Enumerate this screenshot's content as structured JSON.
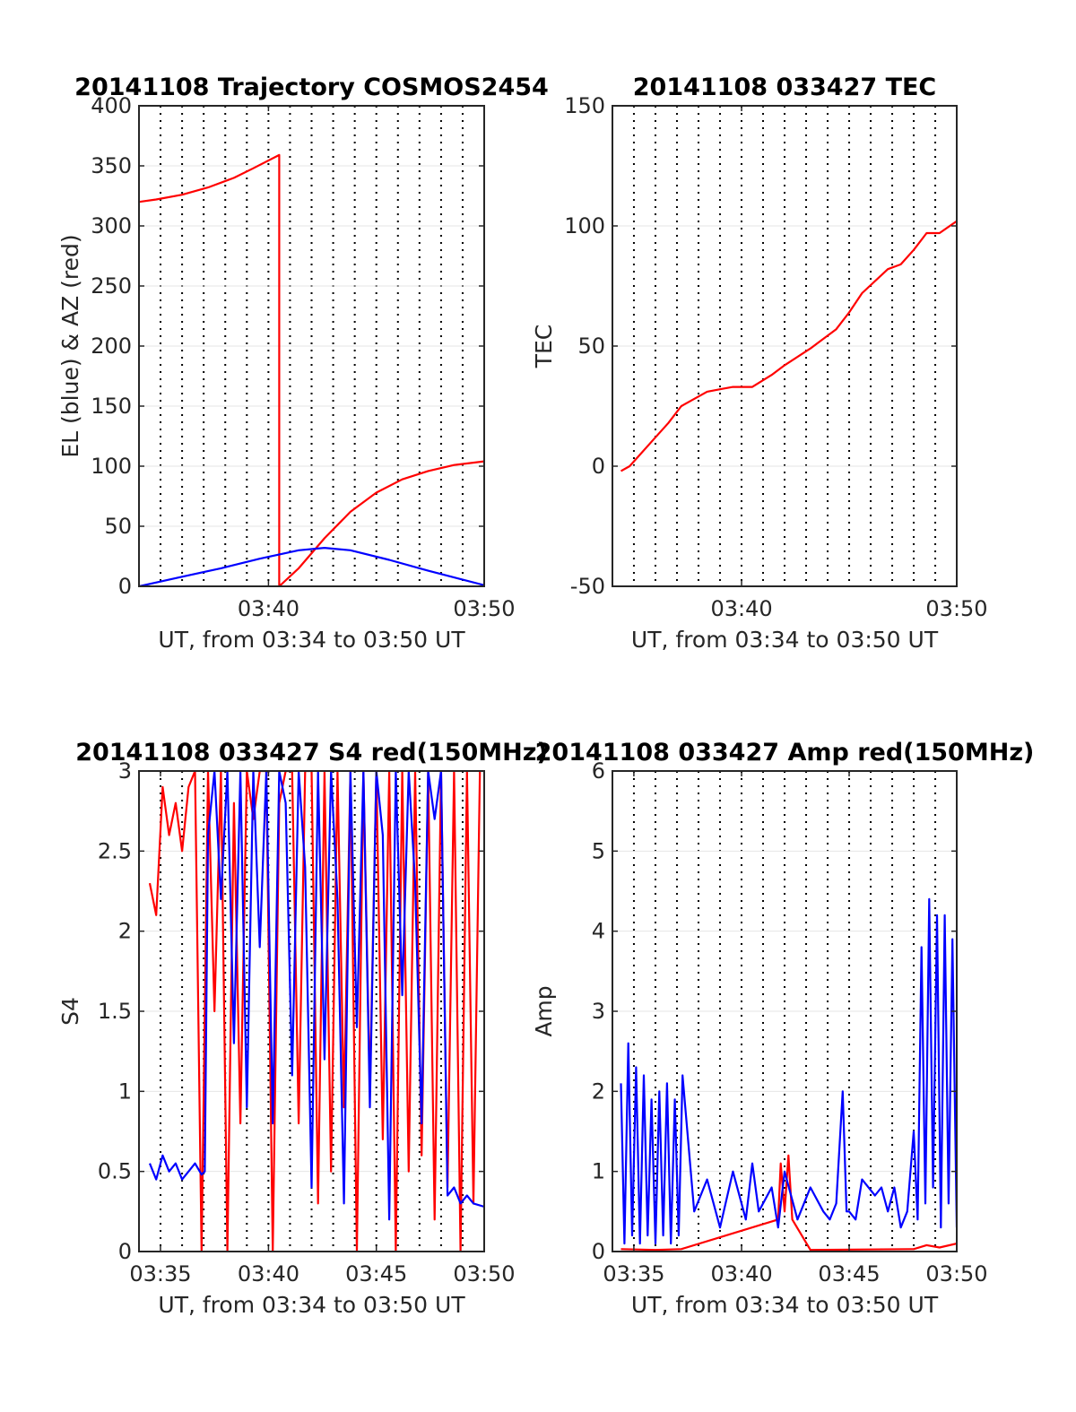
{
  "colors": {
    "red": "#ff0000",
    "blue": "#0000ff",
    "grid": "#000000",
    "axis": "#262626"
  },
  "chart_data": [
    {
      "type": "line",
      "title": "20141108 Trajectory COSMOS2454",
      "xlabel": "UT, from 03:34 to 03:50 UT",
      "ylabel": "EL (blue) & AZ (red)",
      "xlim": [
        3.5667,
        3.8333
      ],
      "ylim": [
        0,
        400
      ],
      "xticks": [
        3.6667,
        3.8333
      ],
      "xticklabels": [
        "03:40",
        "03:50"
      ],
      "yticks": [
        0,
        50,
        100,
        150,
        200,
        250,
        300,
        350,
        400
      ],
      "yticklabels": [
        "0",
        "50",
        "100",
        "150",
        "200",
        "250",
        "300",
        "350",
        "400"
      ],
      "grid": "dotted",
      "series": [
        {
          "color": "#ff0000",
          "x": [
            3.5667,
            3.58,
            3.6,
            3.62,
            3.64,
            3.655,
            3.675,
            3.675,
            3.69,
            3.71,
            3.73,
            3.75,
            3.77,
            3.79,
            3.81,
            3.8333
          ],
          "y": [
            320,
            322,
            326,
            332,
            340,
            348,
            359,
            0,
            15,
            40,
            62,
            78,
            89,
            96,
            101,
            104
          ]
        },
        {
          "color": "#0000ff",
          "x": [
            3.5667,
            3.6,
            3.63,
            3.66,
            3.69,
            3.71,
            3.73,
            3.76,
            3.79,
            3.8333
          ],
          "y": [
            0,
            8,
            15,
            23,
            30,
            32,
            30,
            22,
            13,
            1
          ]
        }
      ]
    },
    {
      "type": "line",
      "title": "20141108 033427 TEC",
      "xlabel": "UT, from 03:34 to 03:50 UT",
      "ylabel": "TEC",
      "xlim": [
        3.5667,
        3.8333
      ],
      "ylim": [
        -50,
        150
      ],
      "xticks": [
        3.6667,
        3.8333
      ],
      "xticklabels": [
        "03:40",
        "03:50"
      ],
      "yticks": [
        -50,
        0,
        50,
        100,
        150
      ],
      "yticklabels": [
        "-50",
        "0",
        "50",
        "100",
        "150"
      ],
      "grid": "dotted",
      "series": [
        {
          "color": "#ff0000",
          "x": [
            3.5733,
            3.58,
            3.6,
            3.61,
            3.62,
            3.64,
            3.65,
            3.66,
            3.675,
            3.69,
            3.7,
            3.72,
            3.74,
            3.75,
            3.76,
            3.78,
            3.79,
            3.8,
            3.81,
            3.82,
            3.8333
          ],
          "y": [
            -2,
            0,
            12,
            18,
            25,
            31,
            32,
            33,
            33,
            38,
            42,
            49,
            57,
            64,
            72,
            82,
            84,
            90,
            97,
            97,
            102
          ]
        }
      ]
    },
    {
      "type": "line",
      "title": "20141108 033427 S4 red(150MHz)",
      "xlabel": "UT, from 03:34 to 03:50 UT",
      "ylabel": "S4",
      "xlim": [
        3.5667,
        3.8333
      ],
      "ylim": [
        0,
        3
      ],
      "xticks": [
        3.5833,
        3.6667,
        3.75,
        3.8333
      ],
      "xticklabels": [
        "03:35",
        "03:40",
        "03:45",
        "03:50"
      ],
      "yticks": [
        0,
        0.5,
        1,
        1.5,
        2,
        2.5,
        3
      ],
      "yticklabels": [
        "0",
        "0.5",
        "1",
        "1.5",
        "2",
        "2.5",
        "3"
      ],
      "grid": "dotted",
      "series": [
        {
          "color": "#ff0000",
          "x": [
            3.575,
            3.58,
            3.585,
            3.59,
            3.595,
            3.6,
            3.605,
            3.61,
            3.615,
            3.62,
            3.625,
            3.63,
            3.635,
            3.64,
            3.645,
            3.65,
            3.655,
            3.66,
            3.665,
            3.67,
            3.675,
            3.68,
            3.685,
            3.69,
            3.695,
            3.7,
            3.705,
            3.71,
            3.715,
            3.72,
            3.725,
            3.73,
            3.735,
            3.74,
            3.745,
            3.75,
            3.755,
            3.76,
            3.765,
            3.77,
            3.775,
            3.78,
            3.785,
            3.79,
            3.795,
            3.8,
            3.805,
            3.81,
            3.815,
            3.82,
            3.825,
            3.83
          ],
          "y": [
            2.3,
            2.1,
            2.9,
            2.6,
            2.8,
            2.5,
            2.9,
            3,
            0,
            3,
            1.5,
            3,
            0,
            2.8,
            0.8,
            3,
            2.7,
            3,
            3,
            0,
            2.8,
            3,
            3,
            0.8,
            3,
            3,
            0.3,
            3,
            0.5,
            3,
            0.9,
            3,
            0,
            3,
            1,
            3,
            0.7,
            3,
            0,
            3,
            0.5,
            3,
            0.6,
            3,
            0.2,
            3,
            0.4,
            3,
            0,
            3,
            0.3,
            3
          ]
        },
        {
          "color": "#0000ff",
          "x": [
            3.575,
            3.58,
            3.585,
            3.59,
            3.595,
            3.6,
            3.605,
            3.61,
            3.615,
            3.6175,
            3.62,
            3.625,
            3.63,
            3.635,
            3.64,
            3.645,
            3.65,
            3.655,
            3.66,
            3.665,
            3.67,
            3.675,
            3.68,
            3.685,
            3.69,
            3.695,
            3.7,
            3.705,
            3.71,
            3.715,
            3.72,
            3.725,
            3.73,
            3.735,
            3.74,
            3.745,
            3.75,
            3.755,
            3.76,
            3.765,
            3.77,
            3.775,
            3.78,
            3.785,
            3.79,
            3.795,
            3.8,
            3.805,
            3.81,
            3.815,
            3.82,
            3.825,
            3.8333
          ],
          "y": [
            0.55,
            0.45,
            0.6,
            0.5,
            0.55,
            0.45,
            0.5,
            0.55,
            0.48,
            0.5,
            2.6,
            3,
            2.2,
            3,
            1.3,
            3,
            0.9,
            3,
            1.9,
            3,
            0.8,
            3,
            2.8,
            1.1,
            3,
            2.4,
            0.4,
            3,
            1.2,
            3,
            2.2,
            0.3,
            3,
            1.4,
            3,
            0.9,
            3,
            2.6,
            0.2,
            3,
            1.6,
            3,
            2.3,
            0.8,
            3,
            2.7,
            3,
            0.35,
            0.4,
            0.3,
            0.35,
            0.3,
            0.28
          ]
        }
      ]
    },
    {
      "type": "line",
      "title": "20141108 033427 Amp red(150MHz)",
      "xlabel": "UT, from 03:34 to 03:50 UT",
      "ylabel": "Amp",
      "xlim": [
        3.5667,
        3.8333
      ],
      "ylim": [
        0,
        6
      ],
      "xticks": [
        3.5833,
        3.6667,
        3.75,
        3.8333
      ],
      "xticklabels": [
        "03:35",
        "03:40",
        "03:45",
        "03:50"
      ],
      "yticks": [
        0,
        1,
        2,
        3,
        4,
        5,
        6
      ],
      "yticklabels": [
        "0",
        "1",
        "2",
        "3",
        "4",
        "5",
        "6"
      ],
      "grid": "dotted",
      "series": [
        {
          "color": "#ff0000",
          "x": [
            3.5733,
            3.6,
            3.62,
            3.695,
            3.697,
            3.7,
            3.703,
            3.706,
            3.72,
            3.8,
            3.81,
            3.82,
            3.8333
          ],
          "y": [
            0.03,
            0.02,
            0.03,
            0.4,
            1.1,
            0.5,
            1.2,
            0.4,
            0.02,
            0.03,
            0.08,
            0.05,
            0.1
          ]
        },
        {
          "color": "#0000ff",
          "x": [
            3.5733,
            3.576,
            3.579,
            3.582,
            3.585,
            3.588,
            3.591,
            3.594,
            3.597,
            3.6,
            3.603,
            3.606,
            3.609,
            3.612,
            3.615,
            3.618,
            3.621,
            3.63,
            3.64,
            3.65,
            3.66,
            3.67,
            3.675,
            3.68,
            3.69,
            3.695,
            3.7,
            3.71,
            3.72,
            3.73,
            3.735,
            3.74,
            3.745,
            3.748,
            3.75,
            3.755,
            3.76,
            3.77,
            3.775,
            3.78,
            3.785,
            3.79,
            3.795,
            3.8,
            3.803,
            3.806,
            3.809,
            3.812,
            3.815,
            3.818,
            3.821,
            3.824,
            3.827,
            3.83,
            3.8333
          ],
          "y": [
            2.1,
            0.1,
            2.6,
            0.2,
            2.3,
            0.1,
            2.2,
            0.2,
            1.9,
            0.1,
            2.0,
            0.2,
            2.1,
            0.1,
            1.9,
            0.2,
            2.2,
            0.5,
            0.9,
            0.3,
            1.0,
            0.4,
            1.1,
            0.5,
            0.8,
            0.3,
            1.0,
            0.4,
            0.8,
            0.5,
            0.4,
            0.6,
            2.0,
            0.5,
            0.5,
            0.4,
            0.9,
            0.7,
            0.8,
            0.5,
            0.8,
            0.3,
            0.5,
            1.5,
            0.4,
            3.8,
            0.6,
            4.4,
            0.8,
            4.2,
            0.3,
            4.2,
            0.6,
            3.9,
            0.3
          ]
        }
      ]
    }
  ]
}
